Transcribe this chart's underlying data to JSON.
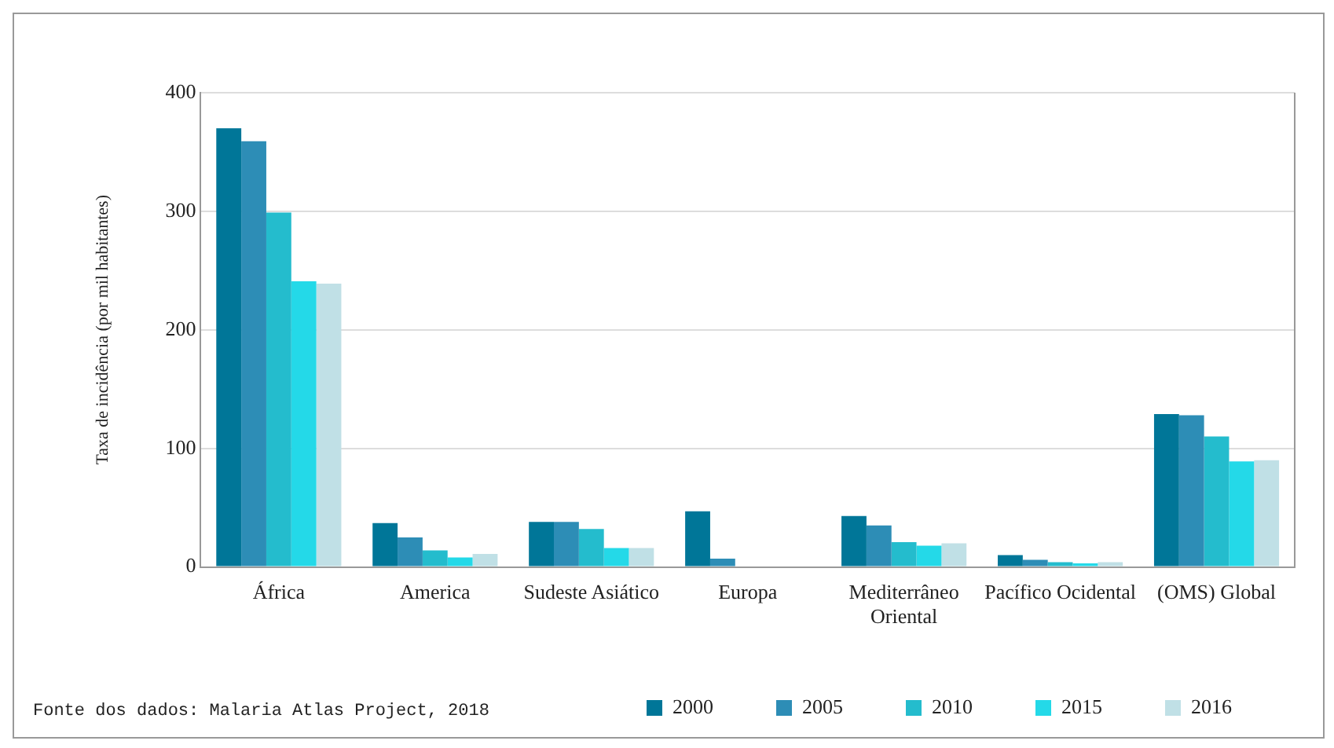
{
  "chart_data": {
    "type": "bar",
    "ylabel": "Taxa de incidência (por mil habitantes)",
    "categories": [
      "África",
      "America",
      "Sudeste Asiático",
      "Europa",
      "Mediterrâneo Oriental",
      "Pacífico Ocidental",
      "(OMS) Global"
    ],
    "series": [
      {
        "name": "2000",
        "color": "#007698",
        "values": [
          370,
          37,
          38,
          47,
          43,
          10,
          129
        ]
      },
      {
        "name": "2005",
        "color": "#2d8db6",
        "values": [
          359,
          25,
          38,
          7,
          35,
          6,
          128
        ]
      },
      {
        "name": "2010",
        "color": "#24bccd",
        "values": [
          299,
          14,
          32,
          0,
          21,
          4,
          110
        ]
      },
      {
        "name": "2015",
        "color": "#24d9e8",
        "values": [
          241,
          8,
          16,
          0,
          18,
          3,
          89
        ]
      },
      {
        "name": "2016",
        "color": "#c0e0e6",
        "values": [
          239,
          11,
          16,
          0,
          20,
          4,
          90
        ]
      }
    ],
    "ylim": [
      0,
      400
    ],
    "yticks": [
      0,
      100,
      200,
      300,
      400
    ],
    "grid": "y",
    "legend": "bottom",
    "annotations": [
      "Fonte dos dados: Malaria Atlas Project, 2018"
    ]
  }
}
